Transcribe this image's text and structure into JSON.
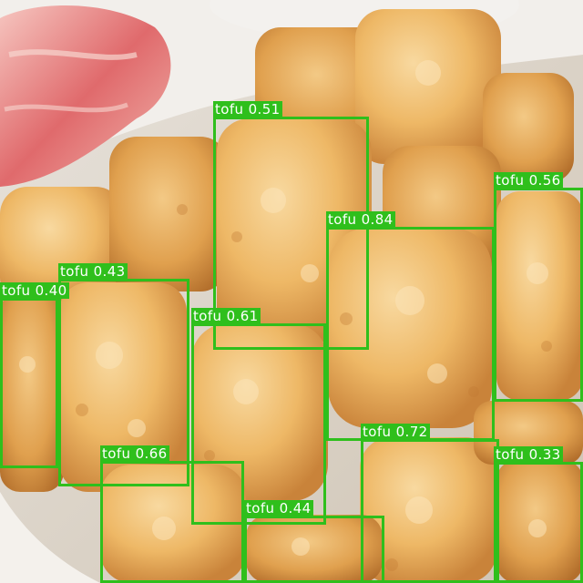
{
  "image": {
    "subject": "fried tofu",
    "box_color": "#2fbf1c",
    "label_text_color": "#ffffff"
  },
  "detections": [
    {
      "class": "tofu",
      "score": "0.51",
      "text": "tofu 0.51"
    },
    {
      "class": "tofu",
      "score": "0.56",
      "text": "tofu 0.56"
    },
    {
      "class": "tofu",
      "score": "0.84",
      "text": "tofu 0.84"
    },
    {
      "class": "tofu",
      "score": "0.43",
      "text": "tofu 0.43"
    },
    {
      "class": "tofu",
      "score": "0.40",
      "text": "tofu 0.40"
    },
    {
      "class": "tofu",
      "score": "0.61",
      "text": "tofu 0.61"
    },
    {
      "class": "tofu",
      "score": "0.72",
      "text": "tofu 0.72"
    },
    {
      "class": "tofu",
      "score": "0.66",
      "text": "tofu 0.66"
    },
    {
      "class": "tofu",
      "score": "0.33",
      "text": "tofu 0.33"
    },
    {
      "class": "tofu",
      "score": "0.44",
      "text": "tofu 0.44"
    }
  ]
}
